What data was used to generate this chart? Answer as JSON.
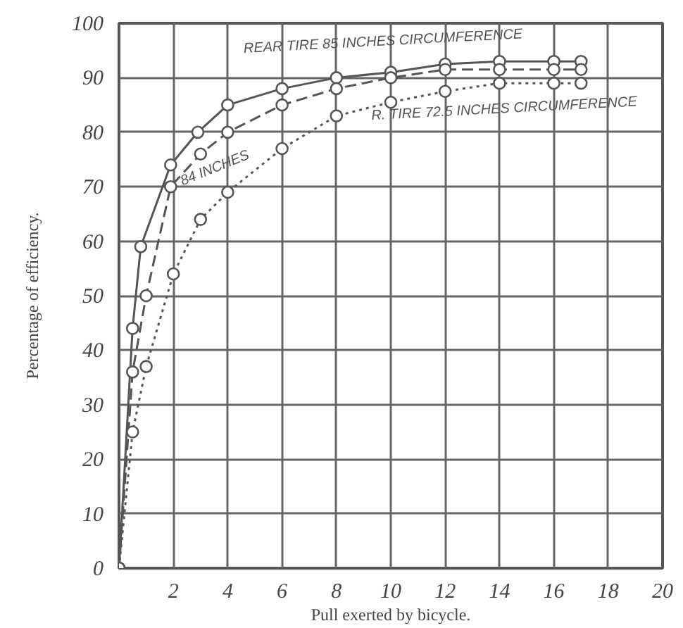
{
  "chart_data": {
    "type": "line",
    "xlabel": "Pull exerted by bicycle.",
    "ylabel": "Percentage of efficiency.",
    "xlim": [
      0,
      20
    ],
    "ylim": [
      0,
      100
    ],
    "xticks": [
      2,
      4,
      6,
      8,
      10,
      12,
      14,
      16,
      18,
      20
    ],
    "yticks": [
      0,
      10,
      20,
      30,
      40,
      50,
      60,
      70,
      80,
      90,
      100
    ],
    "grid": true,
    "marker": "circle",
    "series": [
      {
        "name": "REAR TIRE 85 INCHES CIRCUMFERENCE",
        "color": "#555555",
        "line_style": "solid",
        "x": [
          0,
          0.5,
          0.8,
          1.9,
          2.9,
          4,
          6,
          8,
          10,
          12,
          14,
          16,
          17
        ],
        "values": [
          0,
          44,
          59,
          74,
          80,
          85,
          88,
          90,
          91,
          92.5,
          93,
          93,
          93
        ]
      },
      {
        "name": "84 INCHES",
        "color": "#555555",
        "line_style": "dashed",
        "x": [
          0,
          0.5,
          1,
          1.9,
          3,
          4,
          6,
          8,
          10,
          12,
          14,
          16,
          17
        ],
        "values": [
          0,
          36,
          50,
          70,
          76,
          80,
          85,
          88,
          90,
          91.5,
          91.5,
          91.5,
          91.5
        ]
      },
      {
        "name": "R. TIRE 72.5 INCHES CIRCUMFERENCE",
        "color": "#555555",
        "line_style": "dotted",
        "x": [
          0,
          0.5,
          1,
          2,
          3,
          4,
          6,
          8,
          10,
          12,
          14,
          16,
          17
        ],
        "values": [
          0,
          25,
          37,
          54,
          64,
          69,
          77,
          83,
          85.5,
          87.5,
          89,
          89,
          89
        ]
      }
    ]
  }
}
